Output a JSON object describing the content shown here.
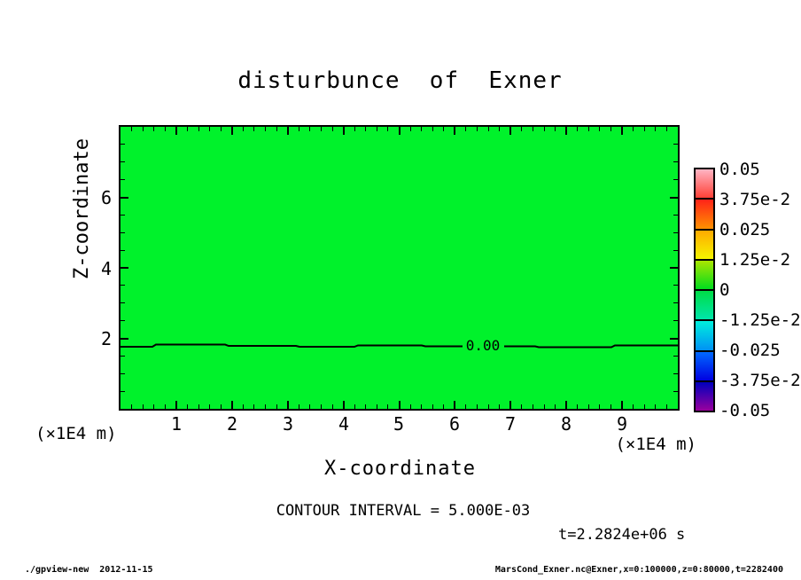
{
  "chart_data": {
    "type": "heatmap",
    "title": "disturbunce  of  Exner",
    "xlabel": "X-coordinate",
    "ylabel": "Z-coordinate",
    "x_unit_label_left": "(×1E4 m)",
    "x_unit_label_right": "(×1E4 m)",
    "xlim": [
      0,
      10
    ],
    "ylim": [
      0,
      8
    ],
    "x_major_ticks": [
      1,
      2,
      3,
      4,
      5,
      6,
      7,
      8,
      9
    ],
    "x_minor_step": 0.2,
    "y_major_ticks": [
      2,
      4,
      6
    ],
    "y_minor_step": 0.5,
    "grid": false,
    "fill_color": "#00F22B",
    "frame_color": "#000000",
    "contour": {
      "label": "0.00",
      "level": 0,
      "z_position": 1.8
    },
    "contour_interval_text": "CONTOUR INTERVAL = 5.000E-03",
    "time_annotation": "t=2.2824e+06 s",
    "colorbar": {
      "position": "right",
      "labels": [
        "0.05",
        "3.75e-2",
        "0.025",
        "1.25e-2",
        "0",
        "-1.25e-2",
        "-0.025",
        "-3.75e-2",
        "-0.05"
      ],
      "segments": [
        {
          "style": "background:linear-gradient(#FFB4C3,#FF4137)"
        },
        {
          "style": "background:linear-gradient(#FF2319,#FF9100)"
        },
        {
          "style": "background:linear-gradient(#FFAA00,#F5F500)"
        },
        {
          "style": "background:linear-gradient(#AAE600,#00DC1E)"
        },
        {
          "style": "background:linear-gradient(#00DC46,#00E6AA)"
        },
        {
          "style": "background:linear-gradient(#00F0DC,#0091F5)"
        },
        {
          "style": "background:linear-gradient(#0069FF,#0000E1)"
        },
        {
          "style": "background:linear-gradient(#0000BE,#99009E)"
        }
      ]
    }
  },
  "footer": {
    "left": "./gpview-new  2012-11-15",
    "right": "MarsCond_Exner.nc@Exner,x=0:100000,z=0:80000,t=2282400"
  }
}
